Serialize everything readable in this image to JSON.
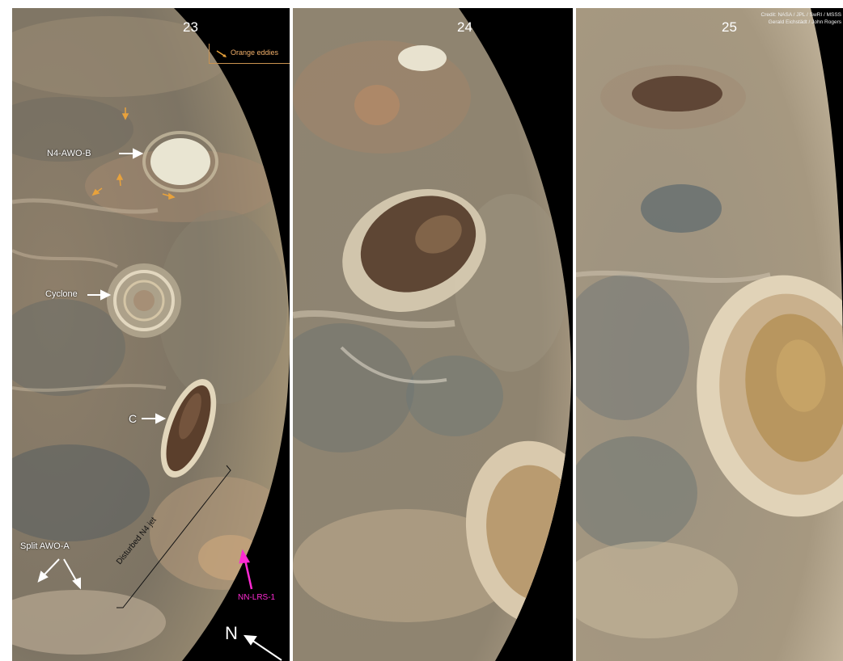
{
  "panels": [
    {
      "number": "23"
    },
    {
      "number": "24"
    },
    {
      "number": "25"
    }
  ],
  "credit": {
    "line1": "Credit: NASA / JPL / SwRI / MSSS",
    "line2": "Gerald Eichstädt / John Rogers"
  },
  "legend": {
    "label": "Orange eddies",
    "color": "#e8a23c"
  },
  "labels": {
    "n4_awo_b": "N4-AWO-B",
    "cyclone": "Cyclone",
    "c": "C",
    "split_awo_a": "Split AWO-A",
    "disturbed_n4_jet": "Disturbed N4 jet",
    "nn_lrs_1": "NN-LRS-1",
    "north": "N"
  },
  "colors": {
    "background": "#000000",
    "annotation": "#ffffff",
    "magenta": "#ff2ad4",
    "orange": "#e8a23c"
  }
}
